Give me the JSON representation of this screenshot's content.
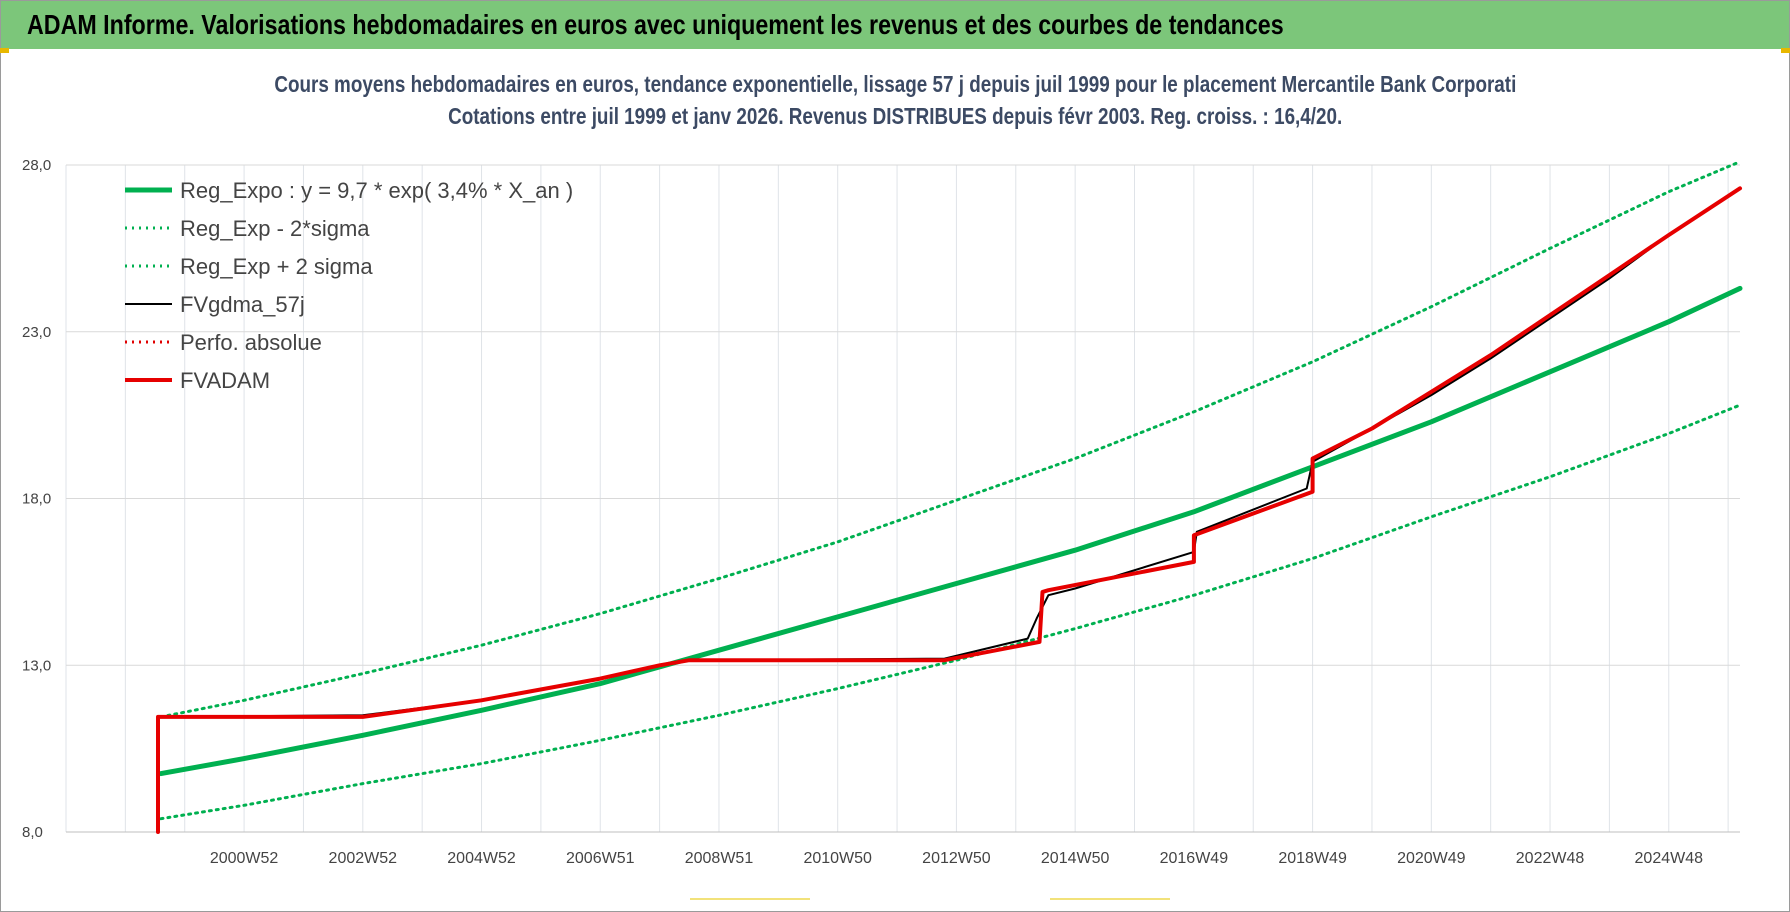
{
  "banner": {
    "title": "ADAM Informe. Valorisations hebdomadaires en euros avec uniquement les revenus et des courbes de tendances"
  },
  "chart_data": {
    "type": "line",
    "title": "Cours moyens hebdomadaires en euros, tendance exponentielle, lissage 57 j depuis juil 1999 pour le placement Mercantile Bank Corporati",
    "subtitle": "Cotations entre juil 1999 et janv 2026. Revenus DISTRIBUES depuis févr 2003. Reg. croiss. : 16,4/20.",
    "xlabel": "",
    "ylabel": "",
    "x_range": [
      1998.0,
      2026.2
    ],
    "ylim": [
      8.0,
      28.0
    ],
    "y_ticks": [
      "8,0",
      "13,0",
      "18,0",
      "23,0",
      "28,0"
    ],
    "x_ticks": [
      {
        "label": "2000W52",
        "x": 2001.0
      },
      {
        "label": "2002W52",
        "x": 2003.0
      },
      {
        "label": "2004W52",
        "x": 2005.0
      },
      {
        "label": "2006W51",
        "x": 2007.0
      },
      {
        "label": "2008W51",
        "x": 2009.0
      },
      {
        "label": "2010W50",
        "x": 2011.0
      },
      {
        "label": "2012W50",
        "x": 2013.0
      },
      {
        "label": "2014W50",
        "x": 2015.0
      },
      {
        "label": "2016W49",
        "x": 2017.0
      },
      {
        "label": "2018W49",
        "x": 2019.0
      },
      {
        "label": "2020W49",
        "x": 2021.0
      },
      {
        "label": "2022W48",
        "x": 2023.0
      },
      {
        "label": "2024W48",
        "x": 2025.0
      }
    ],
    "grid": true,
    "legend_position": "top-left",
    "series": [
      {
        "name": "Reg_Expo : y = 9,7 * exp( 3,4% *  X_an )",
        "color": "#00b050",
        "style": "solid",
        "width": 5,
        "x": [
          1999.6,
          2001.0,
          2003.0,
          2005.0,
          2007.0,
          2009.0,
          2011.0,
          2013.0,
          2015.0,
          2017.0,
          2019.0,
          2021.0,
          2023.0,
          2025.0,
          2026.2
        ],
        "y": [
          9.75,
          10.2,
          10.9,
          11.65,
          12.45,
          13.45,
          14.45,
          15.45,
          16.45,
          17.6,
          18.95,
          20.3,
          21.8,
          23.3,
          24.3
        ]
      },
      {
        "name": "Reg_Exp - 2*sigma",
        "color": "#00b050",
        "style": "dotted",
        "width": 3,
        "x": [
          1999.6,
          2001.0,
          2003.0,
          2005.0,
          2007.0,
          2009.0,
          2011.0,
          2013.0,
          2015.0,
          2017.0,
          2019.0,
          2021.0,
          2023.0,
          2025.0,
          2026.2
        ],
        "y": [
          8.4,
          8.8,
          9.45,
          10.05,
          10.75,
          11.5,
          12.3,
          13.15,
          14.1,
          15.1,
          16.2,
          17.45,
          18.65,
          19.95,
          20.8
        ]
      },
      {
        "name": "Reg_Exp + 2 sigma",
        "color": "#00b050",
        "style": "dotted",
        "width": 3,
        "x": [
          1999.6,
          2001.0,
          2003.0,
          2005.0,
          2007.0,
          2009.0,
          2011.0,
          2013.0,
          2015.0,
          2017.0,
          2019.0,
          2021.0,
          2023.0,
          2025.0,
          2026.2
        ],
        "y": [
          11.45,
          11.95,
          12.75,
          13.6,
          14.55,
          15.6,
          16.7,
          17.95,
          19.2,
          20.6,
          22.1,
          23.75,
          25.5,
          27.2,
          28.1
        ]
      },
      {
        "name": "FVgdma_57j",
        "color": "#000000",
        "style": "solid",
        "width": 2,
        "x": [
          1999.6,
          2003.0,
          2005.0,
          2007.0,
          2008.0,
          2008.5,
          2012.8,
          2014.2,
          2014.35,
          2014.55,
          2015.0,
          2017.0,
          2017.05,
          2018.9,
          2019.0,
          2020.0,
          2021.0,
          2022.0,
          2023.0,
          2024.0,
          2025.0,
          2026.2
        ],
        "y": [
          11.45,
          11.5,
          11.95,
          12.6,
          13.0,
          13.15,
          13.2,
          13.8,
          14.4,
          15.1,
          15.3,
          16.4,
          17.0,
          18.3,
          19.1,
          20.1,
          21.1,
          22.2,
          23.4,
          24.6,
          25.9,
          27.3
        ]
      },
      {
        "name": "Perfo. absolue",
        "color": "#e00000",
        "style": "dotted",
        "width": 2,
        "x": [],
        "y": []
      },
      {
        "name": "FVADAM",
        "color": "#e60000",
        "style": "solid",
        "width": 4,
        "x": [
          1999.55,
          1999.55,
          2003.0,
          2005.0,
          2007.0,
          2008.0,
          2008.5,
          2012.8,
          2014.4,
          2014.45,
          2014.55,
          2017.0,
          2017.0,
          2019.0,
          2019.0,
          2020.0,
          2021.0,
          2022.0,
          2023.0,
          2024.0,
          2025.0,
          2026.2
        ],
        "y": [
          8.0,
          11.45,
          11.45,
          11.95,
          12.6,
          13.0,
          13.15,
          13.15,
          13.7,
          15.2,
          15.25,
          16.1,
          16.9,
          18.2,
          19.2,
          20.1,
          21.2,
          22.3,
          23.5,
          24.7,
          25.9,
          27.3
        ]
      }
    ]
  }
}
